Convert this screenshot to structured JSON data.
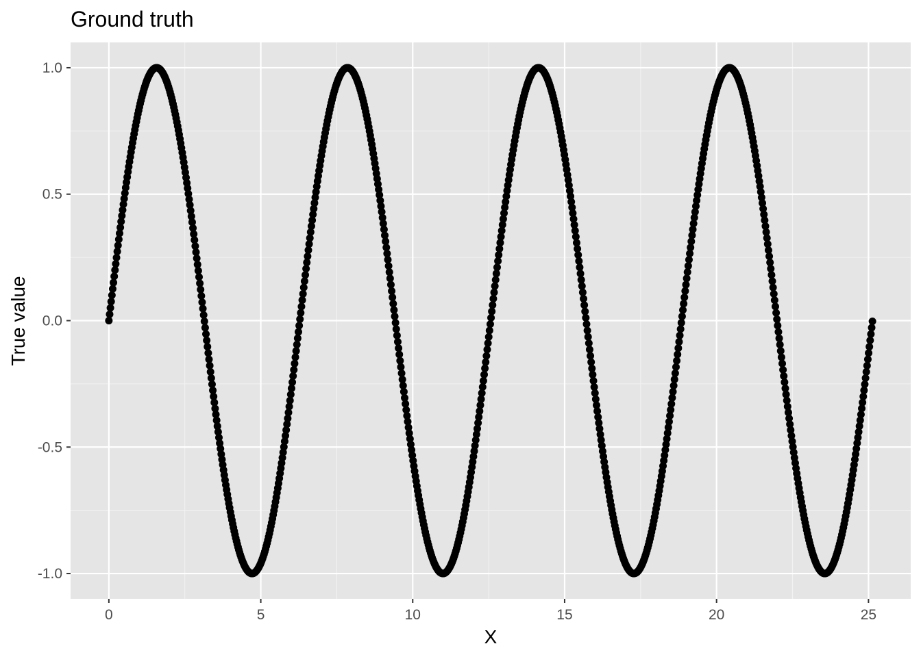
{
  "chart_data": {
    "type": "scatter",
    "title": "Ground truth",
    "xlabel": "X",
    "ylabel": "True value",
    "xlim": [
      -1.26,
      26.39
    ],
    "ylim": [
      -1.1,
      1.1
    ],
    "x_ticks": [
      0,
      5,
      10,
      15,
      20,
      25
    ],
    "x_tick_labels": [
      "0",
      "5",
      "10",
      "15",
      "20",
      "25"
    ],
    "y_ticks": [
      -1.0,
      -0.5,
      0.0,
      0.5,
      1.0
    ],
    "y_tick_labels": [
      "-1.0",
      "-0.5",
      "0.0",
      "0.5",
      "1.0"
    ],
    "grid": true,
    "series": [
      {
        "function": "sin",
        "x_start": 0,
        "x_end": 25.13,
        "n_points": 1000,
        "color": "#000000"
      }
    ],
    "colors": {
      "panel_background": "#e5e5e5",
      "grid_major": "#ffffff",
      "grid_minor": "#f2f2f2",
      "points": "#000000"
    }
  }
}
